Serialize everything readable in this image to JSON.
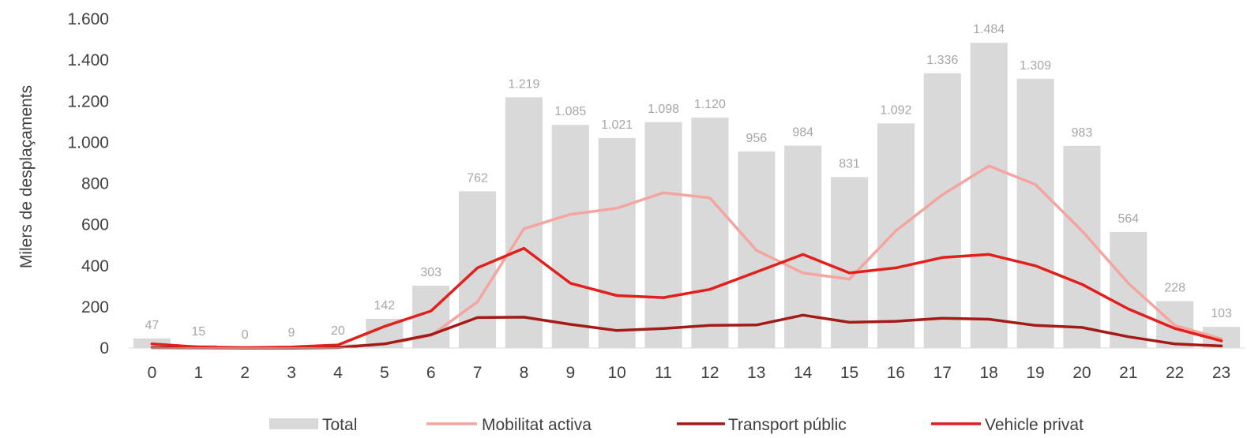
{
  "chart_data": {
    "type": "bar",
    "categories": [
      "0",
      "1",
      "2",
      "3",
      "4",
      "5",
      "6",
      "7",
      "8",
      "9",
      "10",
      "11",
      "12",
      "13",
      "14",
      "15",
      "16",
      "17",
      "18",
      "19",
      "20",
      "21",
      "22",
      "23"
    ],
    "ylabel": "Milers de desplaçaments",
    "xlabel": "",
    "ylim": [
      0,
      1600
    ],
    "yticks": [
      0,
      200,
      400,
      600,
      800,
      1000,
      1200,
      1400,
      1600
    ],
    "ytick_labels": [
      "0",
      "200",
      "400",
      "600",
      "800",
      "1.000",
      "1.200",
      "1.400",
      "1.600"
    ],
    "grid": false,
    "legend_position": "bottom",
    "series": [
      {
        "name": "Total",
        "type": "bar",
        "color": "#d9d9d9",
        "values": [
          47,
          15,
          0,
          9,
          20,
          142,
          303,
          762,
          1219,
          1085,
          1021,
          1098,
          1120,
          956,
          984,
          831,
          1092,
          1336,
          1484,
          1309,
          983,
          564,
          228,
          103
        ],
        "labels": [
          "47",
          "15",
          "0",
          "9",
          "20",
          "142",
          "303",
          "762",
          "1.219",
          "1.085",
          "1.021",
          "1.098",
          "1.120",
          "956",
          "984",
          "831",
          "1.092",
          "1.336",
          "1.484",
          "1.309",
          "983",
          "564",
          "228",
          "103"
        ]
      },
      {
        "name": "Mobilitat activa",
        "type": "line",
        "color": "#f4a5a0",
        "values": [
          20,
          5,
          0,
          2,
          5,
          20,
          60,
          225,
          580,
          650,
          680,
          755,
          730,
          475,
          365,
          335,
          570,
          745,
          885,
          795,
          570,
          315,
          110,
          45
        ]
      },
      {
        "name": "Transport públic",
        "type": "line",
        "color": "#a31a16",
        "values": [
          2,
          1,
          0,
          0,
          2,
          20,
          65,
          148,
          150,
          115,
          85,
          95,
          110,
          112,
          160,
          125,
          130,
          145,
          140,
          110,
          100,
          55,
          20,
          10
        ]
      },
      {
        "name": "Vehicle privat",
        "type": "line",
        "color": "#e31f1c",
        "values": [
          20,
          5,
          2,
          5,
          15,
          105,
          180,
          390,
          485,
          315,
          255,
          245,
          285,
          370,
          455,
          365,
          390,
          440,
          455,
          400,
          310,
          190,
          95,
          35
        ]
      }
    ]
  }
}
